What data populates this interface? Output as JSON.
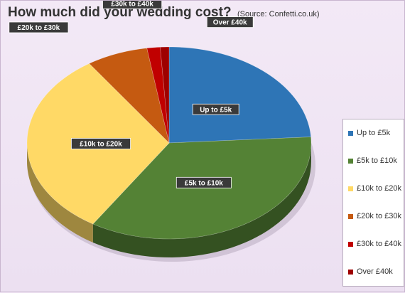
{
  "title": "How much did your wedding cost?",
  "subtitle": "(Source: Confetti.co.uk)",
  "chart_data": {
    "type": "pie",
    "title": "How much did your wedding cost?",
    "subtitle": "(Source: Confetti.co.uk)",
    "legend_position": "right",
    "categories": [
      "Up to £5k",
      "£5k to £10k",
      "£10k to £20k",
      "£20k to £30k",
      "£30k to £40k",
      "Over £40k"
    ],
    "values": [
      24,
      35,
      31.5,
      7,
      1.5,
      1
    ],
    "unit": "%",
    "colors": [
      "#2e75b6",
      "#548235",
      "#ffd966",
      "#c55a11",
      "#c00000",
      "#9e0000"
    ],
    "data_labels": [
      "Up to £5k",
      "£5k to £10k",
      "£10k to £20k",
      "£20k to £30k",
      "£30k to £40k",
      "Over £40k"
    ]
  }
}
